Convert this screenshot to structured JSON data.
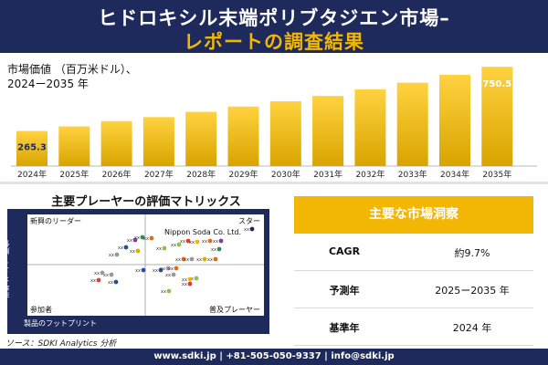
{
  "header": {
    "title_line1": "ヒドロキシル末端ポリブタジエン市場–",
    "title_line2": "レポートの調査結果",
    "bg_color": "#1f2a5c",
    "accent_color": "#f2b705"
  },
  "chart_data": {
    "type": "bar",
    "ylabel": "市場価値 （百万米ドル）、\n2024ー2035 年",
    "categories": [
      "2024年",
      "2025年",
      "2026年",
      "2027年",
      "2028年",
      "2029年",
      "2030年",
      "2031年",
      "2032年",
      "2033年",
      "2034年",
      "2035年"
    ],
    "values": [
      265.3,
      300,
      340,
      370,
      410,
      450,
      490,
      530,
      580,
      630,
      690,
      750.5
    ],
    "data_labels": {
      "0": "265.3",
      "11": "750.5"
    },
    "ylim": [
      0,
      800
    ],
    "colors": {
      "bar_dark": "#d9a400",
      "bar_light": "#ffd23f"
    }
  },
  "matrix": {
    "title": "主要プレーヤーの評価マトリックス",
    "y_axis": "市場シェア・順位",
    "x_axis": "製品のフットプリント",
    "quadrants": {
      "top_left": "新興のリーダー",
      "top_right": "スター",
      "bottom_left": "参加者",
      "bottom_right": "普及プレーヤー"
    },
    "highlight_label": "Nippon Soda Co. Ltd.",
    "point_label": "xx"
  },
  "info": {
    "header": "主要な市場洞察",
    "rows": [
      {
        "key": "CAGR",
        "value": "約9.7%"
      },
      {
        "key": "予測年",
        "value": "2025ー2035 年"
      },
      {
        "key": "基準年",
        "value": "2024 年"
      }
    ]
  },
  "source": "ソース：SDKI Analytics 分析",
  "footer": "www.sdki.jp | +81-505-050-9337 | info@sdki.jp"
}
